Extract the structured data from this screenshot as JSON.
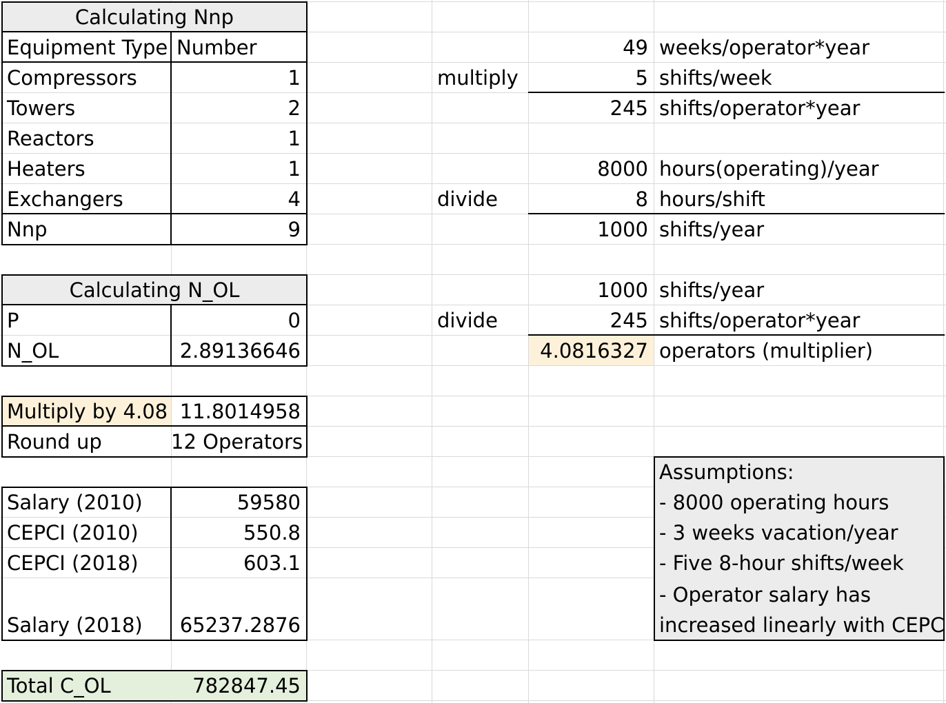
{
  "nnp_table": {
    "title": "Calculating Nnp",
    "col_headers": [
      "Equipment Type",
      "Number"
    ],
    "rows": [
      {
        "label": "Compressors",
        "value": "1"
      },
      {
        "label": "Towers",
        "value": "2"
      },
      {
        "label": "Reactors",
        "value": "1"
      },
      {
        "label": "Heaters",
        "value": "1"
      },
      {
        "label": "Exchangers",
        "value": "4"
      }
    ],
    "total": {
      "label": "Nnp",
      "value": "9"
    }
  },
  "nol_table": {
    "title": "Calculating N_OL",
    "rows": [
      {
        "label": "P",
        "value": "0"
      },
      {
        "label": "N_OL",
        "value": "2.89136646"
      }
    ]
  },
  "operators": {
    "multiply": {
      "label": "Multiply by 4.08",
      "value": "11.8014958"
    },
    "roundup": {
      "label": "Round up",
      "value": "12 Operators"
    }
  },
  "salary_table": {
    "rows": [
      {
        "label": "Salary (2010)",
        "value": "59580"
      },
      {
        "label": "CEPCI (2010)",
        "value": "550.8"
      },
      {
        "label": "CEPCI (2018)",
        "value": "603.1"
      },
      {
        "label": "Salary (2018)",
        "value": "65237.2876"
      }
    ]
  },
  "total": {
    "label": "Total C_OL",
    "value": "782847.45"
  },
  "calc": {
    "shifts": {
      "op": "multiply",
      "rows": [
        {
          "value": "49",
          "unit": "weeks/operator*year"
        },
        {
          "value": "5",
          "unit": "shifts/week"
        },
        {
          "value": "245",
          "unit": "shifts/operator*year"
        }
      ]
    },
    "hours": {
      "op": "divide",
      "rows": [
        {
          "value": "8000",
          "unit": "hours(operating)/year"
        },
        {
          "value": "8",
          "unit": "hours/shift"
        },
        {
          "value": "1000",
          "unit": "shifts/year"
        }
      ]
    },
    "multiplier": {
      "op": "divide",
      "rows": [
        {
          "value": "1000",
          "unit": "shifts/year"
        },
        {
          "value": "245",
          "unit": "shifts/operator*year"
        },
        {
          "value": "4.0816327",
          "unit": "operators (multiplier)"
        }
      ]
    }
  },
  "assumptions": {
    "title": "Assumptions:",
    "items": [
      "- 8000 operating hours",
      "- 3 weeks vacation/year",
      "- Five 8-hour shifts/week",
      "- Operator salary has",
      "increased linearly with CEPCI"
    ]
  },
  "colors": {
    "header_fill": "#ececec",
    "highlight_fill": "#fdf1d9",
    "total_fill": "#e4efdc",
    "gridline": "#d9d9d9",
    "border": "#000000"
  }
}
